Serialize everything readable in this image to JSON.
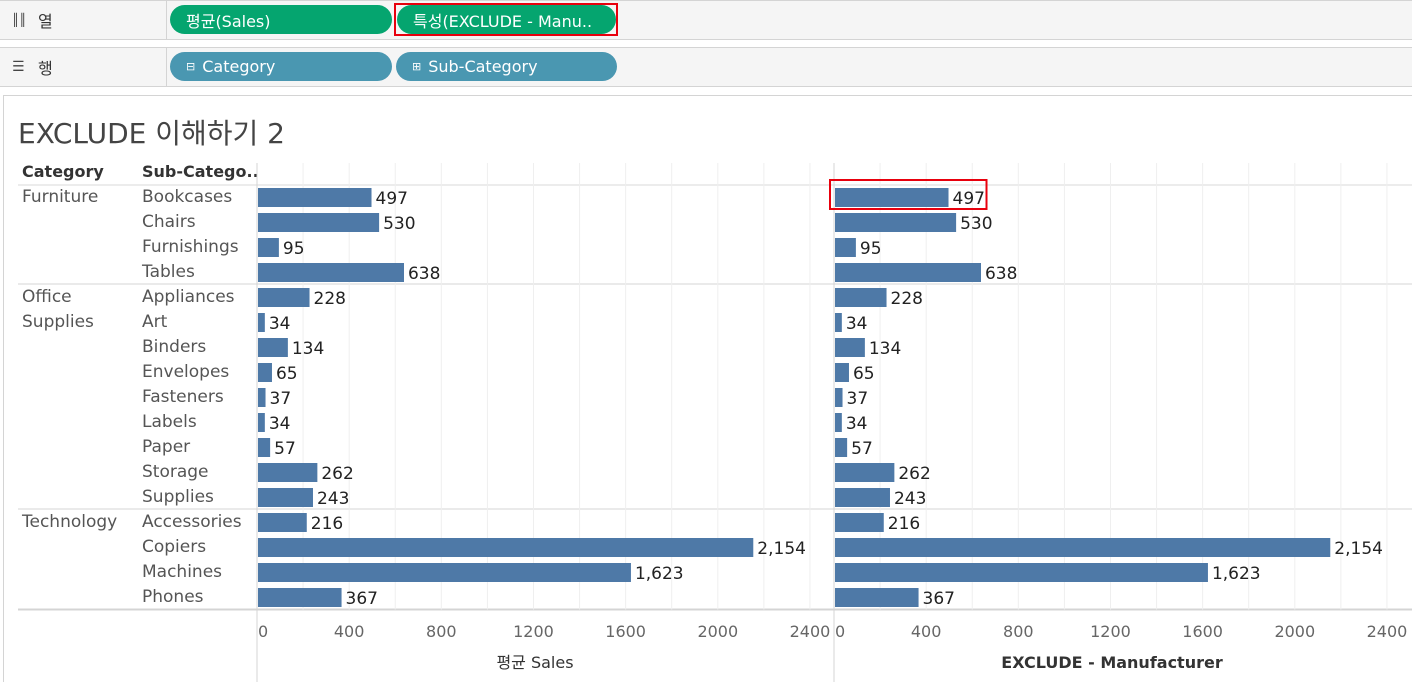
{
  "shelves": {
    "columns": {
      "label": "열",
      "icon": "columns-icon",
      "pills": [
        "평균(Sales)",
        "특성(EXCLUDE - Manu.."
      ]
    },
    "rows": {
      "label": "행",
      "icon": "rows-icon",
      "pills": [
        "Category",
        "Sub-Category"
      ]
    }
  },
  "colors": {
    "bar": "#4e79a7",
    "pill_measure": "#05a56f",
    "pill_dimension": "#4a97b1",
    "highlight": "#e8000d"
  },
  "chart_data": {
    "type": "bar",
    "orientation": "horizontal",
    "title": "EXCLUDE 이해하기 2",
    "row_headers": [
      "Category",
      "Sub-Catego.."
    ],
    "groups": [
      {
        "category": "Furniture",
        "subcategories": [
          "Bookcases",
          "Chairs",
          "Furnishings",
          "Tables"
        ]
      },
      {
        "category": "Office Supplies",
        "subcategories": [
          "Appliances",
          "Art",
          "Binders",
          "Envelopes",
          "Fasteners",
          "Labels",
          "Paper",
          "Storage",
          "Supplies"
        ]
      },
      {
        "category": "Technology",
        "subcategories": [
          "Accessories",
          "Copiers",
          "Machines",
          "Phones"
        ]
      }
    ],
    "categories": [
      "Bookcases",
      "Chairs",
      "Furnishings",
      "Tables",
      "Appliances",
      "Art",
      "Binders",
      "Envelopes",
      "Fasteners",
      "Labels",
      "Paper",
      "Storage",
      "Supplies",
      "Accessories",
      "Copiers",
      "Machines",
      "Phones"
    ],
    "series": [
      {
        "name": "평균 Sales",
        "values": [
          497,
          530,
          95,
          638,
          228,
          34,
          134,
          65,
          37,
          34,
          57,
          262,
          243,
          216,
          2154,
          1623,
          367
        ],
        "labels": [
          "497",
          "530",
          "95",
          "638",
          "228",
          "34",
          "134",
          "65",
          "37",
          "34",
          "57",
          "262",
          "243",
          "216",
          "2,154",
          "1,623",
          "367"
        ]
      },
      {
        "name": "EXCLUDE - Manufacturer",
        "values": [
          497,
          530,
          95,
          638,
          228,
          34,
          134,
          65,
          37,
          34,
          57,
          262,
          243,
          216,
          2154,
          1623,
          367
        ],
        "labels": [
          "497",
          "530",
          "95",
          "638",
          "228",
          "34",
          "134",
          "65",
          "37",
          "34",
          "57",
          "262",
          "243",
          "216",
          "2,154",
          "1,623",
          "367"
        ]
      }
    ],
    "xlim": [
      0,
      2400
    ],
    "xticks": [
      0,
      400,
      800,
      1200,
      1600,
      2000,
      2400
    ],
    "grid": true,
    "highlighted": {
      "series": 1,
      "category": "Bookcases"
    }
  }
}
